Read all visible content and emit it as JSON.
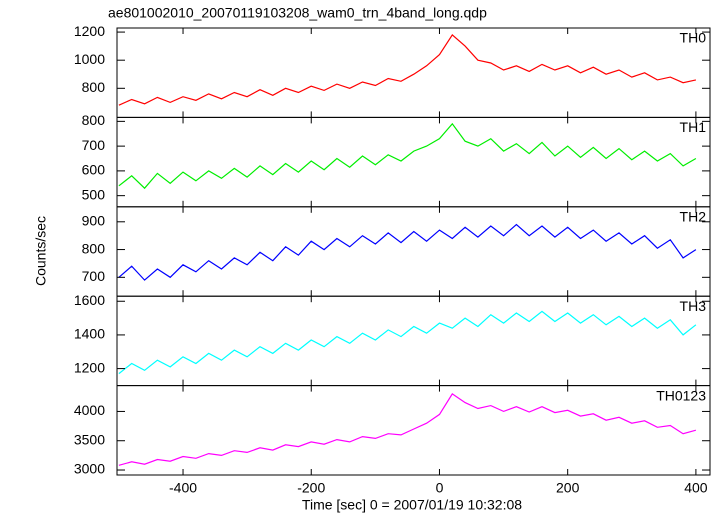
{
  "chart_data": [
    {
      "type": "line",
      "title": "ae801002010_20070119103208_wam0_trn_4band_long.qdp",
      "ylabel": "Counts/sec",
      "x": [
        -500,
        -480,
        -460,
        -440,
        -420,
        -400,
        -380,
        -360,
        -340,
        -320,
        -300,
        -280,
        -260,
        -240,
        -220,
        -200,
        -180,
        -160,
        -140,
        -120,
        -100,
        -80,
        -60,
        -40,
        -20,
        0,
        20,
        40,
        60,
        80,
        100,
        120,
        140,
        160,
        180,
        200,
        220,
        240,
        260,
        280,
        300,
        320,
        340,
        360,
        380,
        400
      ],
      "xlim": [
        -503,
        422
      ],
      "ylim": [
        593,
        1229
      ],
      "yticks": [
        800,
        1000,
        1200
      ],
      "series": [
        {
          "name": "TH0",
          "color": "#ff0000",
          "values": [
            680,
            720,
            690,
            735,
            700,
            740,
            715,
            760,
            725,
            770,
            740,
            790,
            750,
            800,
            770,
            815,
            785,
            830,
            800,
            845,
            820,
            870,
            850,
            900,
            960,
            1040,
            1180,
            1100,
            1000,
            980,
            930,
            960,
            920,
            970,
            930,
            960,
            910,
            950,
            900,
            930,
            880,
            910,
            860,
            880,
            840,
            860
          ]
        }
      ]
    },
    {
      "type": "line",
      "x": [
        -500,
        -480,
        -460,
        -440,
        -420,
        -400,
        -380,
        -360,
        -340,
        -320,
        -300,
        -280,
        -260,
        -240,
        -220,
        -200,
        -180,
        -160,
        -140,
        -120,
        -100,
        -80,
        -60,
        -40,
        -20,
        0,
        20,
        40,
        60,
        80,
        100,
        120,
        140,
        160,
        180,
        200,
        220,
        240,
        260,
        280,
        300,
        320,
        340,
        360,
        380,
        400
      ],
      "xlim": [
        -503,
        422
      ],
      "ylim": [
        455,
        816
      ],
      "yticks": [
        500,
        600,
        700,
        800
      ],
      "series": [
        {
          "name": "TH1",
          "color": "#00ee00",
          "values": [
            540,
            580,
            530,
            590,
            550,
            595,
            560,
            600,
            570,
            610,
            575,
            620,
            585,
            630,
            595,
            640,
            605,
            650,
            615,
            660,
            625,
            665,
            640,
            680,
            700,
            730,
            790,
            720,
            700,
            730,
            680,
            710,
            670,
            715,
            660,
            700,
            655,
            695,
            650,
            690,
            645,
            680,
            640,
            670,
            620,
            650
          ]
        }
      ]
    },
    {
      "type": "line",
      "x": [
        -500,
        -480,
        -460,
        -440,
        -420,
        -400,
        -380,
        -360,
        -340,
        -320,
        -300,
        -280,
        -260,
        -240,
        -220,
        -200,
        -180,
        -160,
        -140,
        -120,
        -100,
        -80,
        -60,
        -40,
        -20,
        0,
        20,
        40,
        60,
        80,
        100,
        120,
        140,
        160,
        180,
        200,
        220,
        240,
        260,
        280,
        300,
        320,
        340,
        360,
        380,
        400
      ],
      "xlim": [
        -503,
        422
      ],
      "ylim": [
        632,
        954
      ],
      "yticks": [
        700,
        800,
        900
      ],
      "series": [
        {
          "name": "TH2",
          "color": "#0000ff",
          "values": [
            700,
            740,
            690,
            730,
            700,
            745,
            720,
            760,
            730,
            770,
            745,
            790,
            760,
            810,
            780,
            830,
            800,
            840,
            810,
            850,
            820,
            860,
            825,
            865,
            830,
            870,
            840,
            880,
            845,
            885,
            850,
            890,
            850,
            885,
            845,
            880,
            840,
            870,
            830,
            860,
            820,
            850,
            805,
            835,
            770,
            800
          ]
        }
      ]
    },
    {
      "type": "line",
      "x": [
        -500,
        -480,
        -460,
        -440,
        -420,
        -400,
        -380,
        -360,
        -340,
        -320,
        -300,
        -280,
        -260,
        -240,
        -220,
        -200,
        -180,
        -160,
        -140,
        -120,
        -100,
        -80,
        -60,
        -40,
        -20,
        0,
        20,
        40,
        60,
        80,
        100,
        120,
        140,
        160,
        180,
        200,
        220,
        240,
        260,
        280,
        300,
        320,
        340,
        360,
        380,
        400
      ],
      "xlim": [
        -503,
        422
      ],
      "ylim": [
        1099,
        1630
      ],
      "yticks": [
        1200,
        1400,
        1600
      ],
      "series": [
        {
          "name": "TH3",
          "color": "#00ffff",
          "values": [
            1170,
            1230,
            1190,
            1250,
            1210,
            1270,
            1230,
            1290,
            1250,
            1310,
            1270,
            1330,
            1290,
            1350,
            1310,
            1370,
            1330,
            1390,
            1350,
            1410,
            1370,
            1430,
            1390,
            1450,
            1410,
            1470,
            1440,
            1500,
            1450,
            1520,
            1470,
            1530,
            1480,
            1540,
            1480,
            1530,
            1470,
            1520,
            1460,
            1510,
            1450,
            1500,
            1440,
            1490,
            1400,
            1460
          ]
        }
      ]
    },
    {
      "type": "line",
      "xlabel": "Time [sec] 0 = 2007/01/19 10:32:08",
      "x": [
        -500,
        -480,
        -460,
        -440,
        -420,
        -400,
        -380,
        -360,
        -340,
        -320,
        -300,
        -280,
        -260,
        -240,
        -220,
        -200,
        -180,
        -160,
        -140,
        -120,
        -100,
        -80,
        -60,
        -40,
        -20,
        0,
        20,
        40,
        60,
        80,
        100,
        120,
        140,
        160,
        180,
        200,
        220,
        240,
        260,
        280,
        300,
        320,
        340,
        360,
        380,
        400
      ],
      "xlim": [
        -503,
        422
      ],
      "xticks": [
        -400,
        -200,
        0,
        200,
        400
      ],
      "ylim": [
        2915,
        4441
      ],
      "yticks": [
        3000,
        3500,
        4000
      ],
      "series": [
        {
          "name": "TH0123",
          "color": "#ff00ff",
          "values": [
            3080,
            3140,
            3100,
            3180,
            3150,
            3230,
            3200,
            3280,
            3250,
            3330,
            3300,
            3380,
            3340,
            3430,
            3400,
            3480,
            3440,
            3520,
            3480,
            3570,
            3540,
            3620,
            3600,
            3700,
            3800,
            3950,
            4300,
            4150,
            4050,
            4100,
            4000,
            4080,
            3990,
            4080,
            3980,
            4020,
            3920,
            3960,
            3850,
            3900,
            3800,
            3840,
            3730,
            3760,
            3620,
            3680
          ]
        }
      ]
    }
  ]
}
